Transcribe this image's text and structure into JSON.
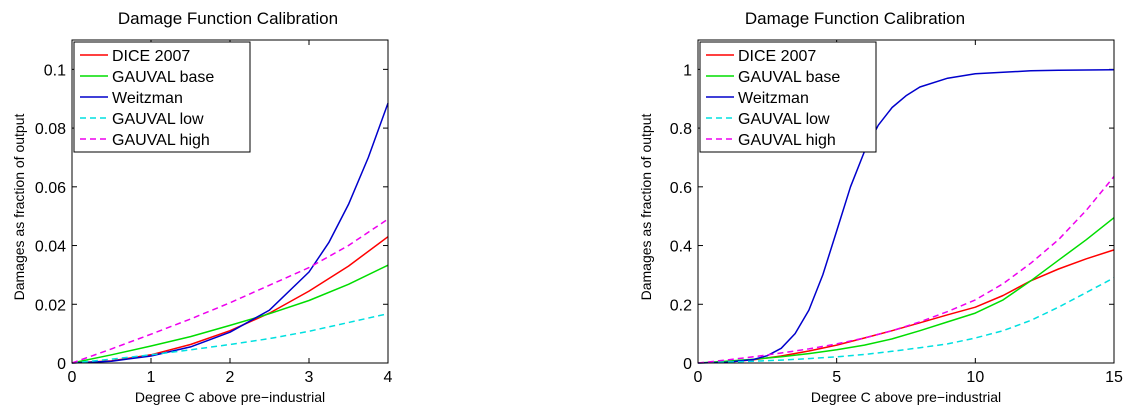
{
  "chart_data": [
    {
      "type": "line",
      "title": "Damage Function Calibration",
      "xlabel": "Degree C above pre−industrial",
      "ylabel": "Damages as fraction of output",
      "xlim": [
        0,
        4
      ],
      "ylim": [
        0,
        0.11
      ],
      "xticks": [
        0,
        1,
        2,
        3,
        4
      ],
      "xtick_labels": [
        "0",
        "1",
        "2",
        "3",
        "4"
      ],
      "yticks": [
        0,
        0.02,
        0.04,
        0.06,
        0.08,
        0.1
      ],
      "ytick_labels": [
        "0",
        "0.02",
        "0.04",
        "0.06",
        "0.08",
        "0.1"
      ],
      "grid": false,
      "legend_position": "top-left",
      "series": [
        {
          "name": "DICE 2007",
          "color": "#ff0000",
          "dash": "solid",
          "x": [
            0,
            0.5,
            1,
            1.5,
            2,
            2.5,
            3,
            3.5,
            4
          ],
          "y": [
            0,
            0.0007,
            0.0028,
            0.0063,
            0.011,
            0.017,
            0.0245,
            0.033,
            0.043
          ]
        },
        {
          "name": "GAUVAL base",
          "color": "#00dd00",
          "dash": "solid",
          "x": [
            0,
            0.5,
            1,
            1.5,
            2,
            2.5,
            3,
            3.5,
            4
          ],
          "y": [
            0,
            0.0028,
            0.0058,
            0.009,
            0.0128,
            0.0168,
            0.0213,
            0.0268,
            0.0333
          ]
        },
        {
          "name": "Weitzman",
          "color": "#0000cc",
          "dash": "solid",
          "x": [
            0,
            0.5,
            1,
            1.5,
            2,
            2.5,
            3,
            3.25,
            3.5,
            3.75,
            4
          ],
          "y": [
            0,
            0.0006,
            0.0024,
            0.0055,
            0.0105,
            0.018,
            0.031,
            0.041,
            0.054,
            0.07,
            0.0885
          ]
        },
        {
          "name": "GAUVAL low",
          "color": "#00e0e0",
          "dash": "dashed",
          "x": [
            0,
            0.5,
            1,
            1.5,
            2,
            2.5,
            3,
            3.5,
            4
          ],
          "y": [
            0,
            0.0013,
            0.0028,
            0.0045,
            0.0063,
            0.0083,
            0.0108,
            0.0138,
            0.0168
          ]
        },
        {
          "name": "GAUVAL high",
          "color": "#ee00ee",
          "dash": "dashed",
          "x": [
            0,
            0.5,
            1,
            1.5,
            2,
            2.5,
            3,
            3.5,
            4
          ],
          "y": [
            0,
            0.0048,
            0.0098,
            0.015,
            0.0205,
            0.0265,
            0.0325,
            0.04,
            0.049
          ]
        }
      ]
    },
    {
      "type": "line",
      "title": "Damage Function Calibration",
      "xlabel": "Degree C above pre−industrial",
      "ylabel": "Damages as fraction of output",
      "xlim": [
        0,
        15
      ],
      "ylim": [
        0,
        1.1
      ],
      "xticks": [
        0,
        5,
        10,
        15
      ],
      "xtick_labels": [
        "0",
        "5",
        "10",
        "15"
      ],
      "yticks": [
        0,
        0.2,
        0.4,
        0.6,
        0.8,
        1
      ],
      "ytick_labels": [
        "0",
        "0.2",
        "0.4",
        "0.6",
        "0.8",
        "1"
      ],
      "grid": false,
      "legend_position": "top-left",
      "series": [
        {
          "name": "DICE 2007",
          "color": "#ff0000",
          "dash": "solid",
          "x": [
            0,
            1,
            2,
            3,
            4,
            5,
            6,
            7,
            8,
            9,
            10,
            11,
            12,
            13,
            14,
            15
          ],
          "y": [
            0,
            0.003,
            0.011,
            0.024,
            0.041,
            0.061,
            0.085,
            0.11,
            0.137,
            0.164,
            0.19,
            0.23,
            0.28,
            0.32,
            0.355,
            0.385
          ]
        },
        {
          "name": "GAUVAL base",
          "color": "#00dd00",
          "dash": "solid",
          "x": [
            0,
            1,
            2,
            3,
            4,
            5,
            6,
            7,
            8,
            9,
            10,
            11,
            12,
            13,
            14,
            15
          ],
          "y": [
            0,
            0.006,
            0.013,
            0.021,
            0.032,
            0.045,
            0.061,
            0.082,
            0.11,
            0.14,
            0.17,
            0.215,
            0.28,
            0.35,
            0.42,
            0.495
          ]
        },
        {
          "name": "Weitzman",
          "color": "#0000cc",
          "dash": "solid",
          "x": [
            0,
            1,
            2,
            2.5,
            3,
            3.5,
            4,
            4.5,
            5,
            5.5,
            6,
            6.5,
            7,
            7.5,
            8,
            9,
            10,
            11,
            12,
            13,
            14,
            15
          ],
          "y": [
            0,
            0.002,
            0.012,
            0.025,
            0.05,
            0.1,
            0.18,
            0.3,
            0.45,
            0.6,
            0.72,
            0.81,
            0.87,
            0.91,
            0.94,
            0.97,
            0.985,
            0.99,
            0.995,
            0.997,
            0.998,
            0.999
          ]
        },
        {
          "name": "GAUVAL low",
          "color": "#00e0e0",
          "dash": "dashed",
          "x": [
            0,
            1,
            2,
            3,
            4,
            5,
            6,
            7,
            8,
            9,
            10,
            11,
            12,
            13,
            14,
            15
          ],
          "y": [
            0,
            0.003,
            0.006,
            0.01,
            0.015,
            0.021,
            0.029,
            0.04,
            0.052,
            0.065,
            0.085,
            0.11,
            0.145,
            0.19,
            0.24,
            0.29
          ]
        },
        {
          "name": "GAUVAL high",
          "color": "#ee00ee",
          "dash": "dashed",
          "x": [
            0,
            1,
            2,
            3,
            4,
            5,
            6,
            7,
            8,
            9,
            10,
            11,
            12,
            13,
            14,
            15
          ],
          "y": [
            0,
            0.01,
            0.021,
            0.034,
            0.048,
            0.065,
            0.085,
            0.11,
            0.14,
            0.175,
            0.215,
            0.27,
            0.34,
            0.42,
            0.52,
            0.635
          ]
        }
      ]
    }
  ]
}
